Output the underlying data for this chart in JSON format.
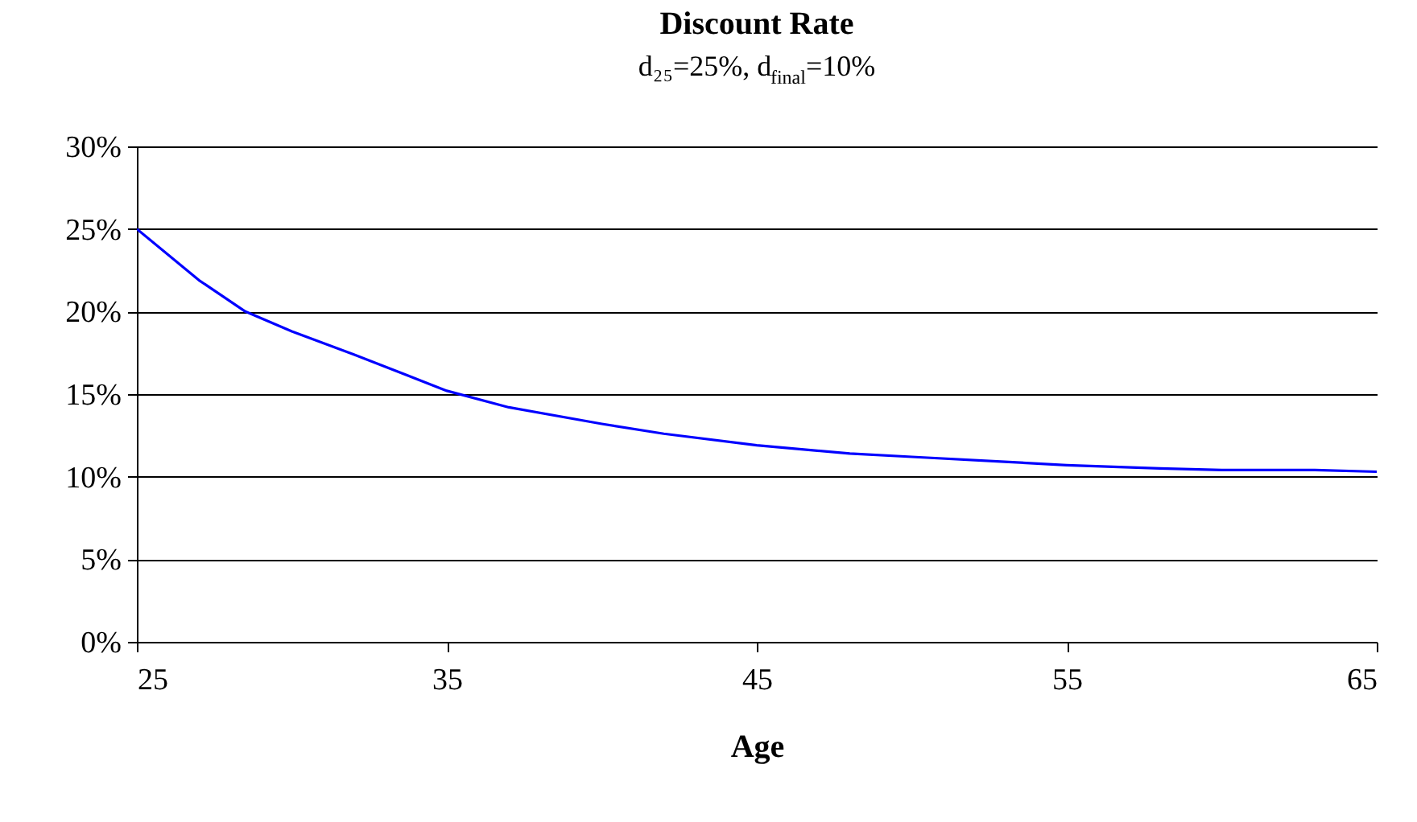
{
  "chart_data": {
    "type": "line",
    "title": "Discount Rate",
    "subtitle": "d₂₅=25%, d$_{final}$=10%",
    "xlabel": "Age",
    "x": [
      25,
      27,
      28.5,
      30,
      32,
      35,
      37,
      40,
      42,
      45,
      48,
      50,
      53,
      55,
      58,
      60,
      63,
      65
    ],
    "series": [
      {
        "color": "#0000ff",
        "values": [
          25,
          21.9,
          20.0,
          18.8,
          17.4,
          15.2,
          14.2,
          13.2,
          12.6,
          11.9,
          11.4,
          11.2,
          10.9,
          10.7,
          10.5,
          10.4,
          10.4,
          10.3
        ]
      }
    ],
    "xlim": [
      25,
      65
    ],
    "xticks": [
      25,
      35,
      45,
      55,
      65
    ],
    "ylim": [
      0,
      30
    ],
    "yticks": [
      {
        "value": 0,
        "label": "0%"
      },
      {
        "value": 5,
        "label": "5%"
      },
      {
        "value": 10,
        "label": "10%"
      },
      {
        "value": 15,
        "label": "15%"
      },
      {
        "value": 20,
        "label": "20%"
      },
      {
        "value": 25,
        "label": "25%"
      },
      {
        "value": 30,
        "label": "30%"
      }
    ],
    "grid": "y",
    "marker": "none",
    "line_style": "solid"
  }
}
